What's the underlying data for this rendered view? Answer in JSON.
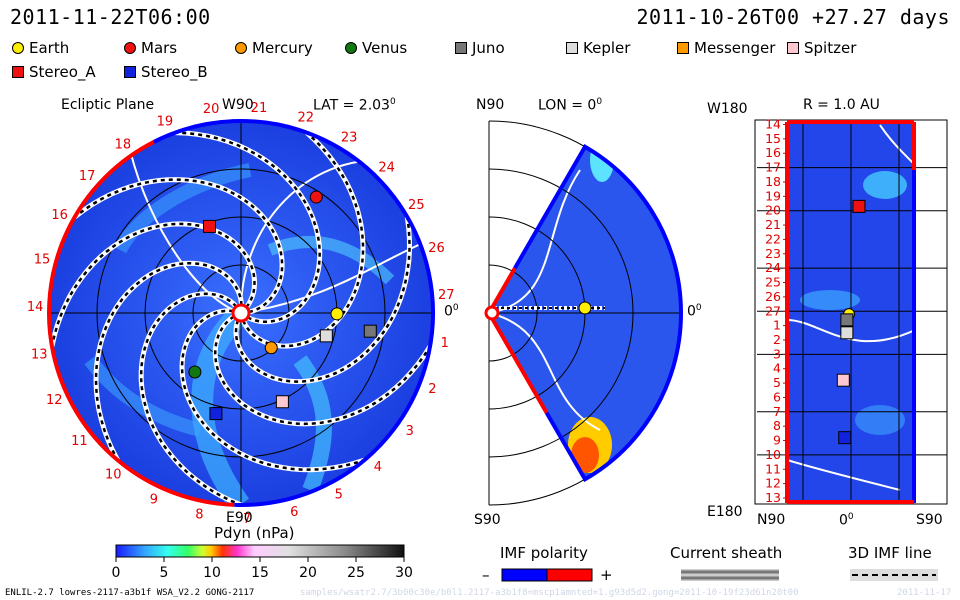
{
  "header": {
    "left_timestamp": "2011-11-22T06:00",
    "right_timestamp": "2011-10-26T00 +27.27 days"
  },
  "legend": [
    {
      "label": "Earth",
      "color": "#ffee00",
      "shape": "circle"
    },
    {
      "label": "Mars",
      "color": "#ee1111",
      "shape": "circle"
    },
    {
      "label": "Mercury",
      "color": "#ff9900",
      "shape": "circle"
    },
    {
      "label": "Venus",
      "color": "#117711",
      "shape": "circle"
    },
    {
      "label": "Juno",
      "color": "#777777",
      "shape": "square"
    },
    {
      "label": "Kepler",
      "color": "#dddddd",
      "shape": "square"
    },
    {
      "label": "Messenger",
      "color": "#ff9900",
      "shape": "square"
    },
    {
      "label": "Spitzer",
      "color": "#ffc8d0",
      "shape": "square"
    },
    {
      "label": "Stereo_A",
      "color": "#ee1111",
      "shape": "square"
    },
    {
      "label": "Stereo_B",
      "color": "#1122dd",
      "shape": "square"
    }
  ],
  "panels": {
    "ecliptic": {
      "title": "Ecliptic Plane",
      "top_label": "W90",
      "lat_label": "LAT = 2.03",
      "lat_deg": "0",
      "bottom_label": "E90",
      "right_label": "0",
      "right_deg": "0"
    },
    "meridional": {
      "top_left": "N90",
      "lon_label": "LON = 0",
      "lon_deg": "0",
      "bottom_left": "S90",
      "right_label": "0",
      "right_deg": "0"
    },
    "ar": {
      "title": "R = 1.0 AU",
      "top_left": "W180",
      "bottom_left": "E180",
      "x_left": "N90",
      "x_mid": "0",
      "x_mid_deg": "0",
      "x_right": "S90"
    }
  },
  "colorbar": {
    "title": "Pdyn (nPa)",
    "ticks": [
      "0",
      "5",
      "10",
      "15",
      "20",
      "25",
      "30"
    ]
  },
  "imf": {
    "title": "IMF polarity",
    "minus": "–",
    "plus": "+",
    "minus_color": "#0000ff",
    "plus_color": "#ff0000"
  },
  "current_sheath": {
    "title": "Current sheath"
  },
  "imf_line": {
    "title": "3D IMF line"
  },
  "footer": {
    "model": "ENLIL-2.7 lowres-2117-a3b1f WSA_V2.2 GONG-2117",
    "faint_path": "samples/wsatr2.7/3b00c30e/b0l1.2117-a3b1f8=mscp1amnted=1.g93d5d2.gong=2011-10-19f23d61n20t00",
    "faint_date": "2011-11-17"
  },
  "chart_data": [
    {
      "type": "polar-heatmap",
      "panel": "Ecliptic Plane",
      "colorbar_quantity": "Pdyn (nPa)",
      "colorbar_range": [
        0,
        30
      ],
      "carrington_labels": [
        "18",
        "19",
        "20",
        "21",
        "22",
        "23",
        "24",
        "25",
        "26",
        "27",
        "1",
        "2",
        "3",
        "4",
        "5",
        "6",
        "7",
        "8",
        "9",
        "10",
        "11",
        "12",
        "13",
        "14",
        "15",
        "16",
        "17"
      ],
      "spacecraft_positions": [
        {
          "name": "Mars",
          "deg": 57,
          "r_frac": 0.72
        },
        {
          "name": "Stereo_A",
          "deg": 110,
          "r_frac": 0.48
        },
        {
          "name": "Earth",
          "deg": -0.5,
          "r_frac": 0.5
        },
        {
          "name": "Juno",
          "deg": -8,
          "r_frac": 0.68
        },
        {
          "name": "Kepler",
          "deg": -15,
          "r_frac": 0.46
        },
        {
          "name": "Mercury",
          "deg": -49,
          "r_frac": 0.24
        },
        {
          "name": "Venus",
          "deg": -128,
          "r_frac": 0.39
        },
        {
          "name": "Spitzer",
          "deg": -65,
          "r_frac": 0.51
        },
        {
          "name": "Stereo_B",
          "deg": -104,
          "r_frac": 0.54
        }
      ]
    },
    {
      "type": "meridional-heatmap",
      "panel": "LON = 0",
      "spacecraft_positions": [
        {
          "name": "Earth",
          "deg": 0,
          "r_frac": 0.5
        }
      ]
    },
    {
      "type": "heatmap",
      "panel": "R = 1.0 AU",
      "y_tick_labels": [
        "14",
        "15",
        "16",
        "17",
        "18",
        "19",
        "20",
        "21",
        "22",
        "23",
        "24",
        "25",
        "26",
        "27",
        "1",
        "2",
        "3",
        "4",
        "5",
        "6",
        "7",
        "8",
        "9",
        "10",
        "11",
        "12",
        "13"
      ],
      "x_tick_labels": [
        "N90",
        "0",
        "S90"
      ],
      "spacecraft_positions": [
        {
          "name": "Stereo_A",
          "lat": 14,
          "row": 5.7
        },
        {
          "name": "Earth",
          "lat": 0,
          "row": 13.2
        },
        {
          "name": "Juno",
          "lat": -3,
          "row": 13.6
        },
        {
          "name": "Kepler",
          "lat": -3,
          "row": 14.5
        },
        {
          "name": "Spitzer",
          "lat": -8,
          "row": 17.8
        },
        {
          "name": "Stereo_B",
          "lat": -6,
          "row": 21.8
        }
      ]
    }
  ]
}
